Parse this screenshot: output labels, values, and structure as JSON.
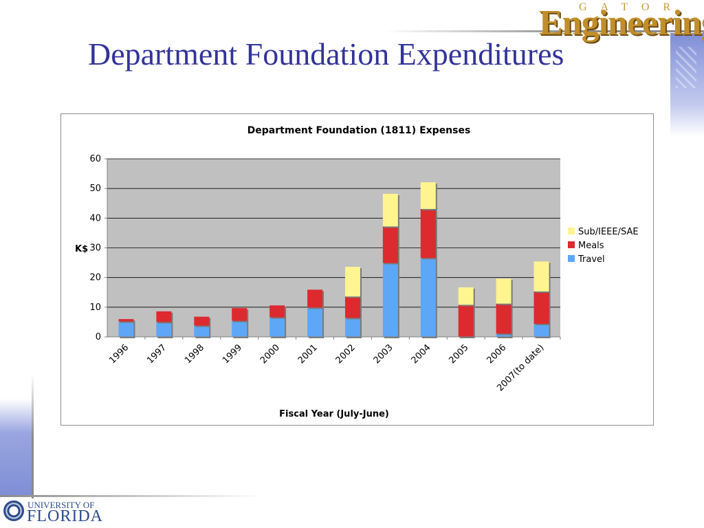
{
  "slide": {
    "title": "Department Foundation Expenditures",
    "logo_top": "GATOR",
    "logo_main": "Engineering",
    "footer_univ": "UNIVERSITY OF",
    "footer_name": "FLORIDA"
  },
  "chart_data": {
    "type": "bar",
    "stacked": true,
    "title": "Department Foundation (1811) Expenses",
    "xlabel": "Fiscal Year (July-June)",
    "ylabel": "K$",
    "ylim": [
      0,
      60
    ],
    "yticks": [
      0,
      10,
      20,
      30,
      40,
      50,
      60
    ],
    "grid": true,
    "legend_position": "right",
    "categories": [
      "1996",
      "1997",
      "1998",
      "1999",
      "2000",
      "2001",
      "2002",
      "2003",
      "2004",
      "2005",
      "2006",
      "2007(to date)"
    ],
    "series": [
      {
        "name": "Travel",
        "color": "#5ea7f7",
        "values": [
          5.2,
          5.0,
          3.8,
          5.4,
          6.6,
          9.9,
          6.4,
          24.9,
          26.6,
          0,
          1.1,
          4.4
        ]
      },
      {
        "name": "Meals",
        "color": "#dc2a2f",
        "values": [
          0.8,
          3.6,
          3.0,
          4.3,
          4.0,
          6.0,
          7.2,
          12.3,
          16.5,
          10.8,
          10.1,
          10.9
        ]
      },
      {
        "name": "Sub/IEEE/SAE",
        "color": "#fff48f",
        "values": [
          0,
          0,
          0,
          0,
          0,
          0,
          10.0,
          11.0,
          9.0,
          5.9,
          8.4,
          10.1
        ]
      }
    ]
  }
}
